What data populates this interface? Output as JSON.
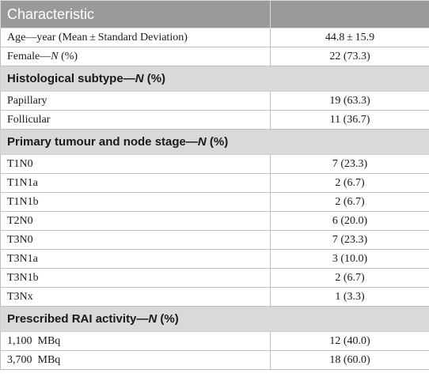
{
  "header": {
    "col1": "Characteristic",
    "col2": ""
  },
  "rows": [
    {
      "type": "data",
      "pre": "Age—year (Mean ± Standard Deviation)",
      "ital": "",
      "post": "",
      "value": "44.8 ± 15.9"
    },
    {
      "type": "data",
      "pre": "Female—",
      "ital": "N",
      "post": " (%)",
      "value": "22 (73.3)"
    },
    {
      "type": "section",
      "pre": "Histological subtype—",
      "ital": "N",
      "post": " (%)"
    },
    {
      "type": "data",
      "pre": "Papillary",
      "ital": "",
      "post": "",
      "value": "19 (63.3)"
    },
    {
      "type": "data",
      "pre": "Follicular",
      "ital": "",
      "post": "",
      "value": "11 (36.7)"
    },
    {
      "type": "section",
      "pre": "Primary tumour and node stage—",
      "ital": "N",
      "post": " (%)"
    },
    {
      "type": "data",
      "pre": "T1N0",
      "ital": "",
      "post": "",
      "value": "7 (23.3)"
    },
    {
      "type": "data",
      "pre": "T1N1a",
      "ital": "",
      "post": "",
      "value": "2 (6.7)"
    },
    {
      "type": "data",
      "pre": "T1N1b",
      "ital": "",
      "post": "",
      "value": "2 (6.7)"
    },
    {
      "type": "data",
      "pre": "T2N0",
      "ital": "",
      "post": "",
      "value": "6 (20.0)"
    },
    {
      "type": "data",
      "pre": "T3N0",
      "ital": "",
      "post": "",
      "value": "7 (23.3)"
    },
    {
      "type": "data",
      "pre": "T3N1a",
      "ital": "",
      "post": "",
      "value": "3 (10.0)"
    },
    {
      "type": "data",
      "pre": "T3N1b",
      "ital": "",
      "post": "",
      "value": "2 (6.7)"
    },
    {
      "type": "data",
      "pre": "T3Nx",
      "ital": "",
      "post": "",
      "value": "1 (3.3)"
    },
    {
      "type": "section",
      "pre": "Prescribed RAI activity—",
      "ital": "N",
      "post": " (%)"
    },
    {
      "type": "data",
      "pre": "1,100 MBq",
      "ital": "",
      "post": "",
      "value": "12 (40.0)"
    },
    {
      "type": "data",
      "pre": "3,700 MBq",
      "ital": "",
      "post": "",
      "value": "18 (60.0)"
    }
  ]
}
